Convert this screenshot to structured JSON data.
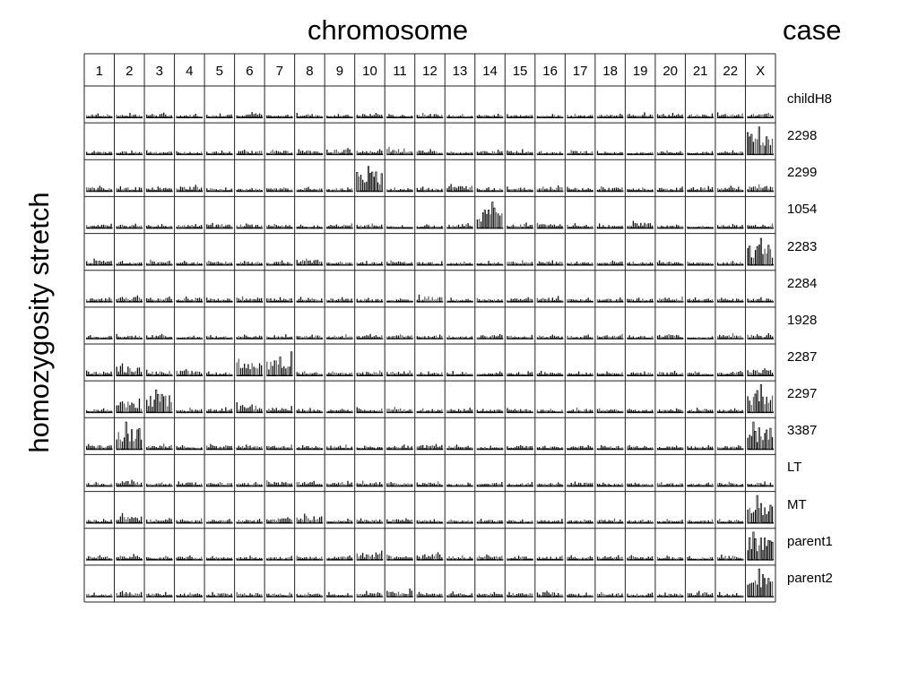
{
  "chart_data": {
    "type": "bar",
    "title": "",
    "xlabel": "chromosome",
    "ylabel": "homozygosity stretch",
    "row_header": "case",
    "categories": [
      "1",
      "2",
      "3",
      "4",
      "5",
      "6",
      "7",
      "8",
      "9",
      "10",
      "11",
      "12",
      "13",
      "14",
      "15",
      "16",
      "17",
      "18",
      "19",
      "20",
      "21",
      "22",
      "X"
    ],
    "cases": [
      "childH8",
      "2298",
      "2299",
      "1054",
      "2283",
      "2284",
      "1928",
      "2287",
      "2297",
      "3387",
      "LT",
      "MT",
      "parent1",
      "parent2"
    ],
    "bars_per_panel": 14,
    "ylim": [
      0,
      1
    ],
    "series": [
      {
        "name": "childH8",
        "values": [
          0.14,
          0.16,
          0.17,
          0.13,
          0.14,
          0.19,
          0.1,
          0.16,
          0.12,
          0.16,
          0.12,
          0.16,
          0.12,
          0.13,
          0.12,
          0.12,
          0.12,
          0.13,
          0.18,
          0.16,
          0.14,
          0.18,
          0.16
        ]
      },
      {
        "name": "2298",
        "values": [
          0.12,
          0.13,
          0.14,
          0.11,
          0.13,
          0.16,
          0.16,
          0.18,
          0.22,
          0.18,
          0.26,
          0.18,
          0.1,
          0.16,
          0.18,
          0.12,
          0.15,
          0.12,
          0.08,
          0.14,
          0.11,
          0.14,
          0.95
        ]
      },
      {
        "name": "2299",
        "values": [
          0.19,
          0.17,
          0.16,
          0.22,
          0.13,
          0.11,
          0.13,
          0.15,
          0.13,
          0.86,
          0.13,
          0.16,
          0.25,
          0.14,
          0.16,
          0.2,
          0.15,
          0.17,
          0.13,
          0.16,
          0.18,
          0.19,
          0.23
        ]
      },
      {
        "name": "1054",
        "values": [
          0.15,
          0.15,
          0.14,
          0.14,
          0.18,
          0.16,
          0.14,
          0.12,
          0.16,
          0.16,
          0.1,
          0.13,
          0.17,
          0.9,
          0.19,
          0.18,
          0.17,
          0.16,
          0.25,
          0.12,
          0.08,
          0.14,
          0.16
        ]
      },
      {
        "name": "2283",
        "values": [
          0.22,
          0.14,
          0.18,
          0.14,
          0.15,
          0.14,
          0.16,
          0.22,
          0.12,
          0.14,
          0.16,
          0.13,
          0.12,
          0.14,
          0.16,
          0.16,
          0.12,
          0.15,
          0.12,
          0.16,
          0.12,
          0.14,
          0.92
        ]
      },
      {
        "name": "2284",
        "values": [
          0.15,
          0.22,
          0.18,
          0.18,
          0.14,
          0.19,
          0.16,
          0.17,
          0.16,
          0.14,
          0.11,
          0.25,
          0.14,
          0.13,
          0.16,
          0.2,
          0.14,
          0.15,
          0.14,
          0.18,
          0.15,
          0.14,
          0.16
        ]
      },
      {
        "name": "1928",
        "values": [
          0.12,
          0.16,
          0.16,
          0.1,
          0.12,
          0.14,
          0.15,
          0.14,
          0.15,
          0.16,
          0.15,
          0.14,
          0.11,
          0.16,
          0.13,
          0.14,
          0.14,
          0.16,
          0.12,
          0.16,
          0.08,
          0.18,
          0.19
        ]
      },
      {
        "name": "2287",
        "values": [
          0.17,
          0.42,
          0.2,
          0.22,
          0.14,
          0.58,
          0.82,
          0.15,
          0.14,
          0.17,
          0.18,
          0.14,
          0.16,
          0.14,
          0.15,
          0.16,
          0.14,
          0.14,
          0.14,
          0.16,
          0.15,
          0.16,
          0.25
        ]
      },
      {
        "name": "2297",
        "values": [
          0.14,
          0.48,
          0.78,
          0.16,
          0.18,
          0.35,
          0.22,
          0.15,
          0.12,
          0.18,
          0.19,
          0.14,
          0.16,
          0.12,
          0.15,
          0.12,
          0.16,
          0.14,
          0.12,
          0.14,
          0.16,
          0.14,
          0.96
        ]
      },
      {
        "name": "3387",
        "values": [
          0.18,
          0.94,
          0.19,
          0.14,
          0.18,
          0.16,
          0.16,
          0.14,
          0.16,
          0.12,
          0.16,
          0.18,
          0.16,
          0.12,
          0.14,
          0.12,
          0.14,
          0.14,
          0.14,
          0.12,
          0.14,
          0.14,
          0.94
        ]
      },
      {
        "name": "LT",
        "values": [
          0.14,
          0.22,
          0.13,
          0.16,
          0.14,
          0.14,
          0.2,
          0.18,
          0.18,
          0.19,
          0.14,
          0.16,
          0.12,
          0.14,
          0.14,
          0.13,
          0.16,
          0.12,
          0.12,
          0.14,
          0.12,
          0.15,
          0.16
        ]
      },
      {
        "name": "MT",
        "values": [
          0.14,
          0.34,
          0.17,
          0.16,
          0.14,
          0.14,
          0.2,
          0.32,
          0.15,
          0.16,
          0.16,
          0.13,
          0.12,
          0.14,
          0.12,
          0.14,
          0.12,
          0.16,
          0.12,
          0.14,
          0.12,
          0.14,
          0.95
        ]
      },
      {
        "name": "parent1",
        "values": [
          0.16,
          0.2,
          0.14,
          0.15,
          0.13,
          0.14,
          0.13,
          0.14,
          0.15,
          0.32,
          0.18,
          0.26,
          0.16,
          0.18,
          0.14,
          0.14,
          0.16,
          0.16,
          0.16,
          0.14,
          0.13,
          0.18,
          0.96
        ]
      },
      {
        "name": "parent2",
        "values": [
          0.14,
          0.2,
          0.16,
          0.14,
          0.16,
          0.16,
          0.14,
          0.14,
          0.16,
          0.2,
          0.28,
          0.16,
          0.18,
          0.16,
          0.16,
          0.2,
          0.14,
          0.16,
          0.14,
          0.14,
          0.2,
          0.16,
          0.96
        ]
      }
    ],
    "grid": true,
    "legend": "none"
  }
}
